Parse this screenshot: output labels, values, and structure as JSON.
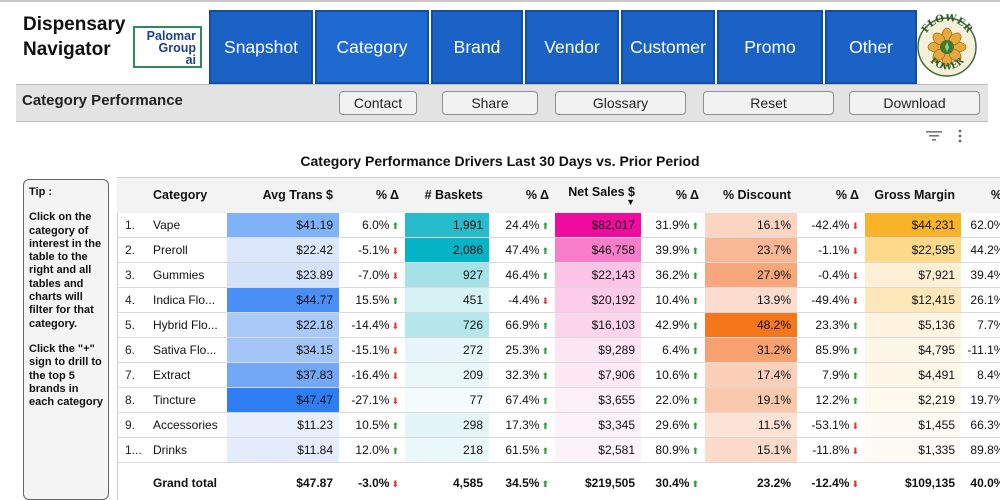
{
  "app": {
    "title_line1": "Dispensary",
    "title_line2": "Navigator"
  },
  "logos": {
    "palomar": {
      "line1": "Palomar",
      "line2": "Group",
      "line3": "ai"
    },
    "flower": {
      "top": "FLOWER",
      "bottom": "POWER"
    }
  },
  "nav": {
    "tabs": [
      {
        "label": "Snapshot"
      },
      {
        "label": "Category"
      },
      {
        "label": "Brand"
      },
      {
        "label": "Vendor"
      },
      {
        "label": "Customer"
      },
      {
        "label": "Promo"
      },
      {
        "label": "Other"
      }
    ]
  },
  "subbar": {
    "title": "Category Performance",
    "buttons": {
      "contact": "Contact",
      "share": "Share",
      "glossary": "Glossary",
      "reset": "Reset",
      "download": "Download"
    }
  },
  "chart_title": "Category Performance Drivers Last 30 Days vs. Prior Period",
  "tip": {
    "head": "Tip :",
    "p1": "Click on the category of interest in the table to the right and all tables and charts will filter for that category.",
    "p2": "Click the \"+\" sign to drill to the top 5 brands in each category"
  },
  "table": {
    "headers": {
      "category": "Category",
      "avg_trans": "Avg Trans $",
      "d1": "% Δ",
      "baskets": "# Baskets",
      "d2": "% Δ",
      "net_sales": "Net Sales $",
      "d3": "% Δ",
      "discount": "% Discount",
      "d4": "% Δ",
      "gross_margin": "Gross Margin",
      "d5": "% Δ",
      "sort_indicator": "▼"
    },
    "colors": {
      "up": "#2e9a41",
      "down": "#d63a3a"
    },
    "rows": [
      {
        "idx": "1.",
        "category": "Vape",
        "avg": "$41.19",
        "avg_d": "6.0%",
        "avg_dir": "up",
        "baskets": "1,991",
        "baskets_d": "24.4%",
        "baskets_dir": "up",
        "sales": "$82,017",
        "sales_d": "31.9%",
        "sales_dir": "up",
        "disc": "16.1%",
        "disc_d": "-42.4%",
        "disc_dir": "down",
        "gm": "$44,231",
        "gm_d": "62.0%",
        "gm_dir": "up",
        "c_avg": "#7fb2f7",
        "c_bask": "#26bccb",
        "c_sales": "#ee0b9e",
        "c_disc": "#fbd4c2",
        "c_gm": "#f8b328"
      },
      {
        "idx": "2.",
        "category": "Preroll",
        "avg": "$22.42",
        "avg_d": "-5.1%",
        "avg_dir": "down",
        "baskets": "2,086",
        "baskets_d": "47.4%",
        "baskets_dir": "up",
        "sales": "$46,758",
        "sales_d": "39.9%",
        "sales_dir": "up",
        "disc": "23.7%",
        "disc_d": "-1.1%",
        "disc_dir": "down",
        "gm": "$22,595",
        "gm_d": "44.2%",
        "gm_dir": "up",
        "c_avg": "#dbe7fb",
        "c_bask": "#04b3c6",
        "c_sales": "#f77cc9",
        "c_disc": "#f9b895",
        "c_gm": "#fcd98b"
      },
      {
        "idx": "3.",
        "category": "Gummies",
        "avg": "$23.89",
        "avg_d": "-7.0%",
        "avg_dir": "down",
        "baskets": "927",
        "baskets_d": "46.4%",
        "baskets_dir": "up",
        "sales": "$22,143",
        "sales_d": "36.2%",
        "sales_dir": "up",
        "disc": "27.9%",
        "disc_d": "-0.4%",
        "disc_dir": "down",
        "gm": "$7,921",
        "gm_d": "39.4%",
        "gm_dir": "up",
        "c_avg": "#d5e3fa",
        "c_bask": "#a5e2e8",
        "c_sales": "#fbc4e6",
        "c_disc": "#f8a77b",
        "c_gm": "#fdf0d6"
      },
      {
        "idx": "4.",
        "category": "Indica Flo...",
        "avg": "$44.77",
        "avg_d": "15.5%",
        "avg_dir": "up",
        "baskets": "451",
        "baskets_d": "-4.4%",
        "baskets_dir": "down",
        "sales": "$20,192",
        "sales_d": "10.4%",
        "sales_dir": "up",
        "disc": "13.9%",
        "disc_d": "-49.4%",
        "disc_dir": "down",
        "gm": "$12,415",
        "gm_d": "26.1%",
        "gm_dir": "up",
        "c_avg": "#4a8ff5",
        "c_bask": "#d6f2f5",
        "c_sales": "#fccbe9",
        "c_disc": "#fbdcce",
        "c_gm": "#fde7b8"
      },
      {
        "idx": "5.",
        "category": "Hybrid Flo...",
        "avg": "$22.18",
        "avg_d": "-14.4%",
        "avg_dir": "down",
        "baskets": "726",
        "baskets_d": "66.9%",
        "baskets_dir": "up",
        "sales": "$16,103",
        "sales_d": "42.9%",
        "sales_dir": "up",
        "disc": "48.2%",
        "disc_d": "23.3%",
        "disc_dir": "up",
        "gm": "$5,136",
        "gm_d": "7.7%",
        "gm_dir": "up",
        "c_avg": "#a9c9f8",
        "c_bask": "#b5e6eb",
        "c_sales": "#fcd5ed",
        "c_disc": "#f5771a",
        "c_gm": "#fef4e0"
      },
      {
        "idx": "6.",
        "category": "Sativa Flo...",
        "avg": "$34.15",
        "avg_d": "-15.1%",
        "avg_dir": "down",
        "baskets": "272",
        "baskets_d": "25.3%",
        "baskets_dir": "up",
        "sales": "$9,289",
        "sales_d": "6.4%",
        "sales_dir": "up",
        "disc": "31.2%",
        "disc_d": "85.9%",
        "disc_dir": "up",
        "gm": "$4,795",
        "gm_d": "-11.1%",
        "gm_dir": "down",
        "c_avg": "#a3c5f8",
        "c_bask": "#e6f6f8",
        "c_sales": "#fde5f3",
        "c_disc": "#f7a070",
        "c_gm": "#fef6e6"
      },
      {
        "idx": "7.",
        "category": "Extract",
        "avg": "$37.83",
        "avg_d": "-16.4%",
        "avg_dir": "down",
        "baskets": "209",
        "baskets_d": "32.3%",
        "baskets_dir": "up",
        "sales": "$7,906",
        "sales_d": "10.6%",
        "sales_dir": "up",
        "disc": "17.4%",
        "disc_d": "7.9%",
        "disc_dir": "up",
        "gm": "$4,491",
        "gm_d": "8.4%",
        "gm_dir": "up",
        "c_avg": "#73a8f6",
        "c_bask": "#eaf7f9",
        "c_sales": "#fde8f4",
        "c_disc": "#fbcfb8",
        "c_gm": "#fef7e8"
      },
      {
        "idx": "8.",
        "category": "Tincture",
        "avg": "$47.47",
        "avg_d": "-27.1%",
        "avg_dir": "down",
        "baskets": "77",
        "baskets_d": "67.4%",
        "baskets_dir": "up",
        "sales": "$3,655",
        "sales_d": "22.0%",
        "sales_dir": "up",
        "disc": "19.1%",
        "disc_d": "12.2%",
        "disc_dir": "up",
        "gm": "$2,219",
        "gm_d": "19.7%",
        "gm_dir": "up",
        "c_avg": "#2f7df3",
        "c_bask": "#f3fbfc",
        "c_sales": "#fef0f8",
        "c_disc": "#fac8ab",
        "c_gm": "#fffaf0"
      },
      {
        "idx": "9.",
        "category": "Accessories",
        "avg": "$11.23",
        "avg_d": "10.5%",
        "avg_dir": "up",
        "baskets": "298",
        "baskets_d": "17.3%",
        "baskets_dir": "up",
        "sales": "$3,345",
        "sales_d": "29.6%",
        "sales_dir": "up",
        "disc": "11.5%",
        "disc_d": "-53.1%",
        "disc_dir": "down",
        "gm": "$1,455",
        "gm_d": "66.3%",
        "gm_dir": "up",
        "c_avg": "#e8effc",
        "c_bask": "#e4f5f8",
        "c_sales": "#fef1f8",
        "c_disc": "#fce3d6",
        "c_gm": "#fffbf3"
      },
      {
        "idx": "1...",
        "category": "Drinks",
        "avg": "$11.84",
        "avg_d": "12.0%",
        "avg_dir": "up",
        "baskets": "218",
        "baskets_d": "61.5%",
        "baskets_dir": "up",
        "sales": "$2,581",
        "sales_d": "80.9%",
        "sales_dir": "up",
        "disc": "15.1%",
        "disc_d": "-11.8%",
        "disc_dir": "down",
        "gm": "$1,335",
        "gm_d": "89.8%",
        "gm_dir": "up",
        "c_avg": "#e5edfc",
        "c_bask": "#ebf8fa",
        "c_sales": "#fef3f9",
        "c_disc": "#fbdac9",
        "c_gm": "#fffbf4"
      }
    ],
    "total": {
      "label": "Grand total",
      "avg": "$47.87",
      "avg_d": "-3.0%",
      "avg_dir": "down",
      "baskets": "4,585",
      "baskets_d": "34.5%",
      "baskets_dir": "up",
      "sales": "$219,505",
      "sales_d": "30.4%",
      "sales_dir": "up",
      "disc": "23.2%",
      "disc_d": "-12.4%",
      "disc_dir": "down",
      "gm": "$109,135",
      "gm_d": "40.0%",
      "gm_dir": "up"
    }
  }
}
